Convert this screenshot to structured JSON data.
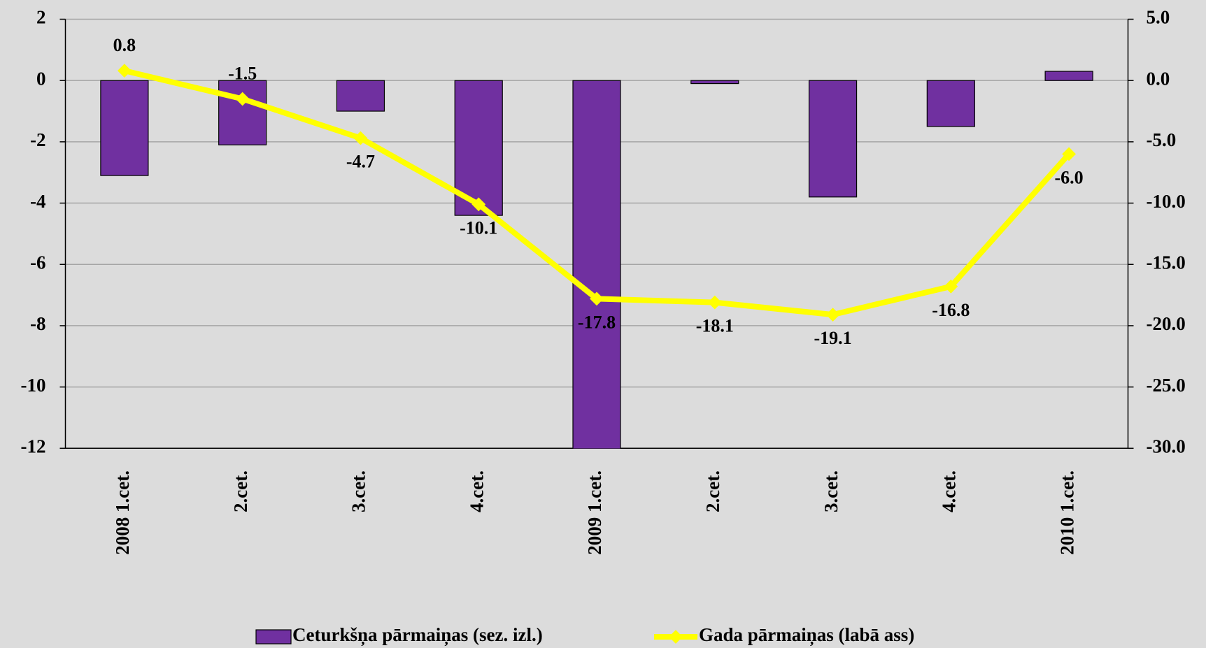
{
  "chart_data": {
    "type": "combo",
    "categories": [
      "2008 1.cet.",
      "2.cet.",
      "3.cet.",
      "4.cet.",
      "2009 1.cet.",
      "2.cet.",
      "3.cet.",
      "4.cet.",
      "2010 1.cet."
    ],
    "series": [
      {
        "name": "Ceturkšņa pārmaiņas (sez. izl.)",
        "type": "bar",
        "color": "#7030a0",
        "values": [
          -3.1,
          -2.1,
          -1.0,
          -4.4,
          -12.4,
          -0.1,
          -3.8,
          -1.5,
          0.3
        ]
      },
      {
        "name": "Gada pārmaiņas (labā ass)",
        "type": "line",
        "axis": "y2",
        "color": "#ffff00",
        "values": [
          0.8,
          -1.5,
          -4.7,
          -10.1,
          -17.8,
          -18.1,
          -19.1,
          -16.8,
          -6.0
        ],
        "value_labels": [
          "0.8",
          "-1.5",
          "-4.7",
          "-10.1",
          "-17.8",
          "-18.1",
          "-19.1",
          "-16.8",
          "-6.0"
        ]
      }
    ],
    "ylim": [
      -12,
      2
    ],
    "yticks": [
      -12,
      -10,
      -8,
      -6,
      -4,
      -2,
      0,
      2
    ],
    "y2lim": [
      -30,
      5
    ],
    "y2ticks": [
      {
        "value": -30,
        "label": "-30.0"
      },
      {
        "value": -25,
        "label": "-25.0"
      },
      {
        "value": -20,
        "label": "-20.0"
      },
      {
        "value": -15,
        "label": "-15.0"
      },
      {
        "value": -10,
        "label": "-10.0"
      },
      {
        "value": -5,
        "label": "-5.0"
      },
      {
        "value": 0,
        "label": "0.0"
      },
      {
        "value": 5,
        "label": "5.0"
      }
    ],
    "grid": true,
    "legend": "bottom"
  }
}
